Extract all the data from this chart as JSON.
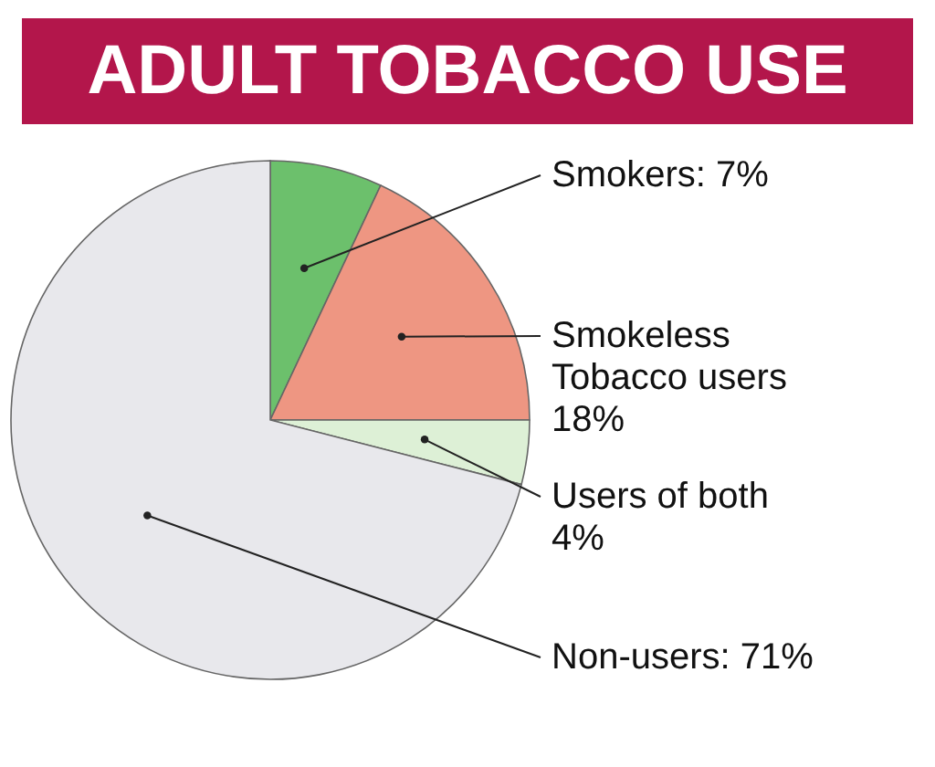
{
  "chart_data": {
    "type": "pie",
    "title": "ADULT TOBACCO USE",
    "categories": [
      "Smokers",
      "Smokeless Tobacco users",
      "Users of both",
      "Non-users"
    ],
    "values": [
      7,
      18,
      4,
      71
    ],
    "value_labels": [
      "7%",
      "18%",
      "4%",
      "71%"
    ],
    "colors": [
      "#6cc06c",
      "#ee9682",
      "#ddf0d6",
      "#e8e8ec"
    ]
  }
}
